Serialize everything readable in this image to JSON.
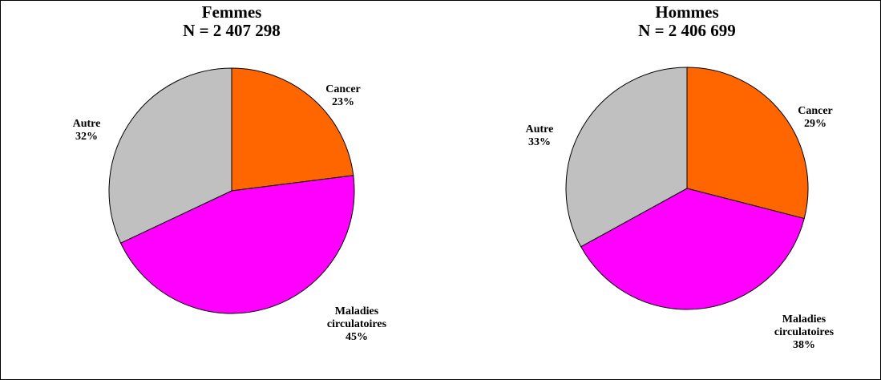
{
  "chart_data": [
    {
      "type": "pie",
      "title": "Femmes",
      "subtitle": "N = 2 407 298",
      "categories": [
        "Cancer",
        "Maladies circulatoires",
        "Autre"
      ],
      "values": [
        23,
        45,
        32
      ],
      "value_labels": [
        "23%",
        "45%",
        "32%"
      ],
      "colors": [
        "#ff6600",
        "#ff00ff",
        "#c0c0c0"
      ]
    },
    {
      "type": "pie",
      "title": "Hommes",
      "subtitle": "N = 2 406 699",
      "categories": [
        "Cancer",
        "Maladies circulatoires",
        "Autre"
      ],
      "values": [
        29,
        38,
        33
      ],
      "value_labels": [
        "29%",
        "38%",
        "33%"
      ],
      "colors": [
        "#ff6600",
        "#ff00ff",
        "#c0c0c0"
      ]
    }
  ]
}
